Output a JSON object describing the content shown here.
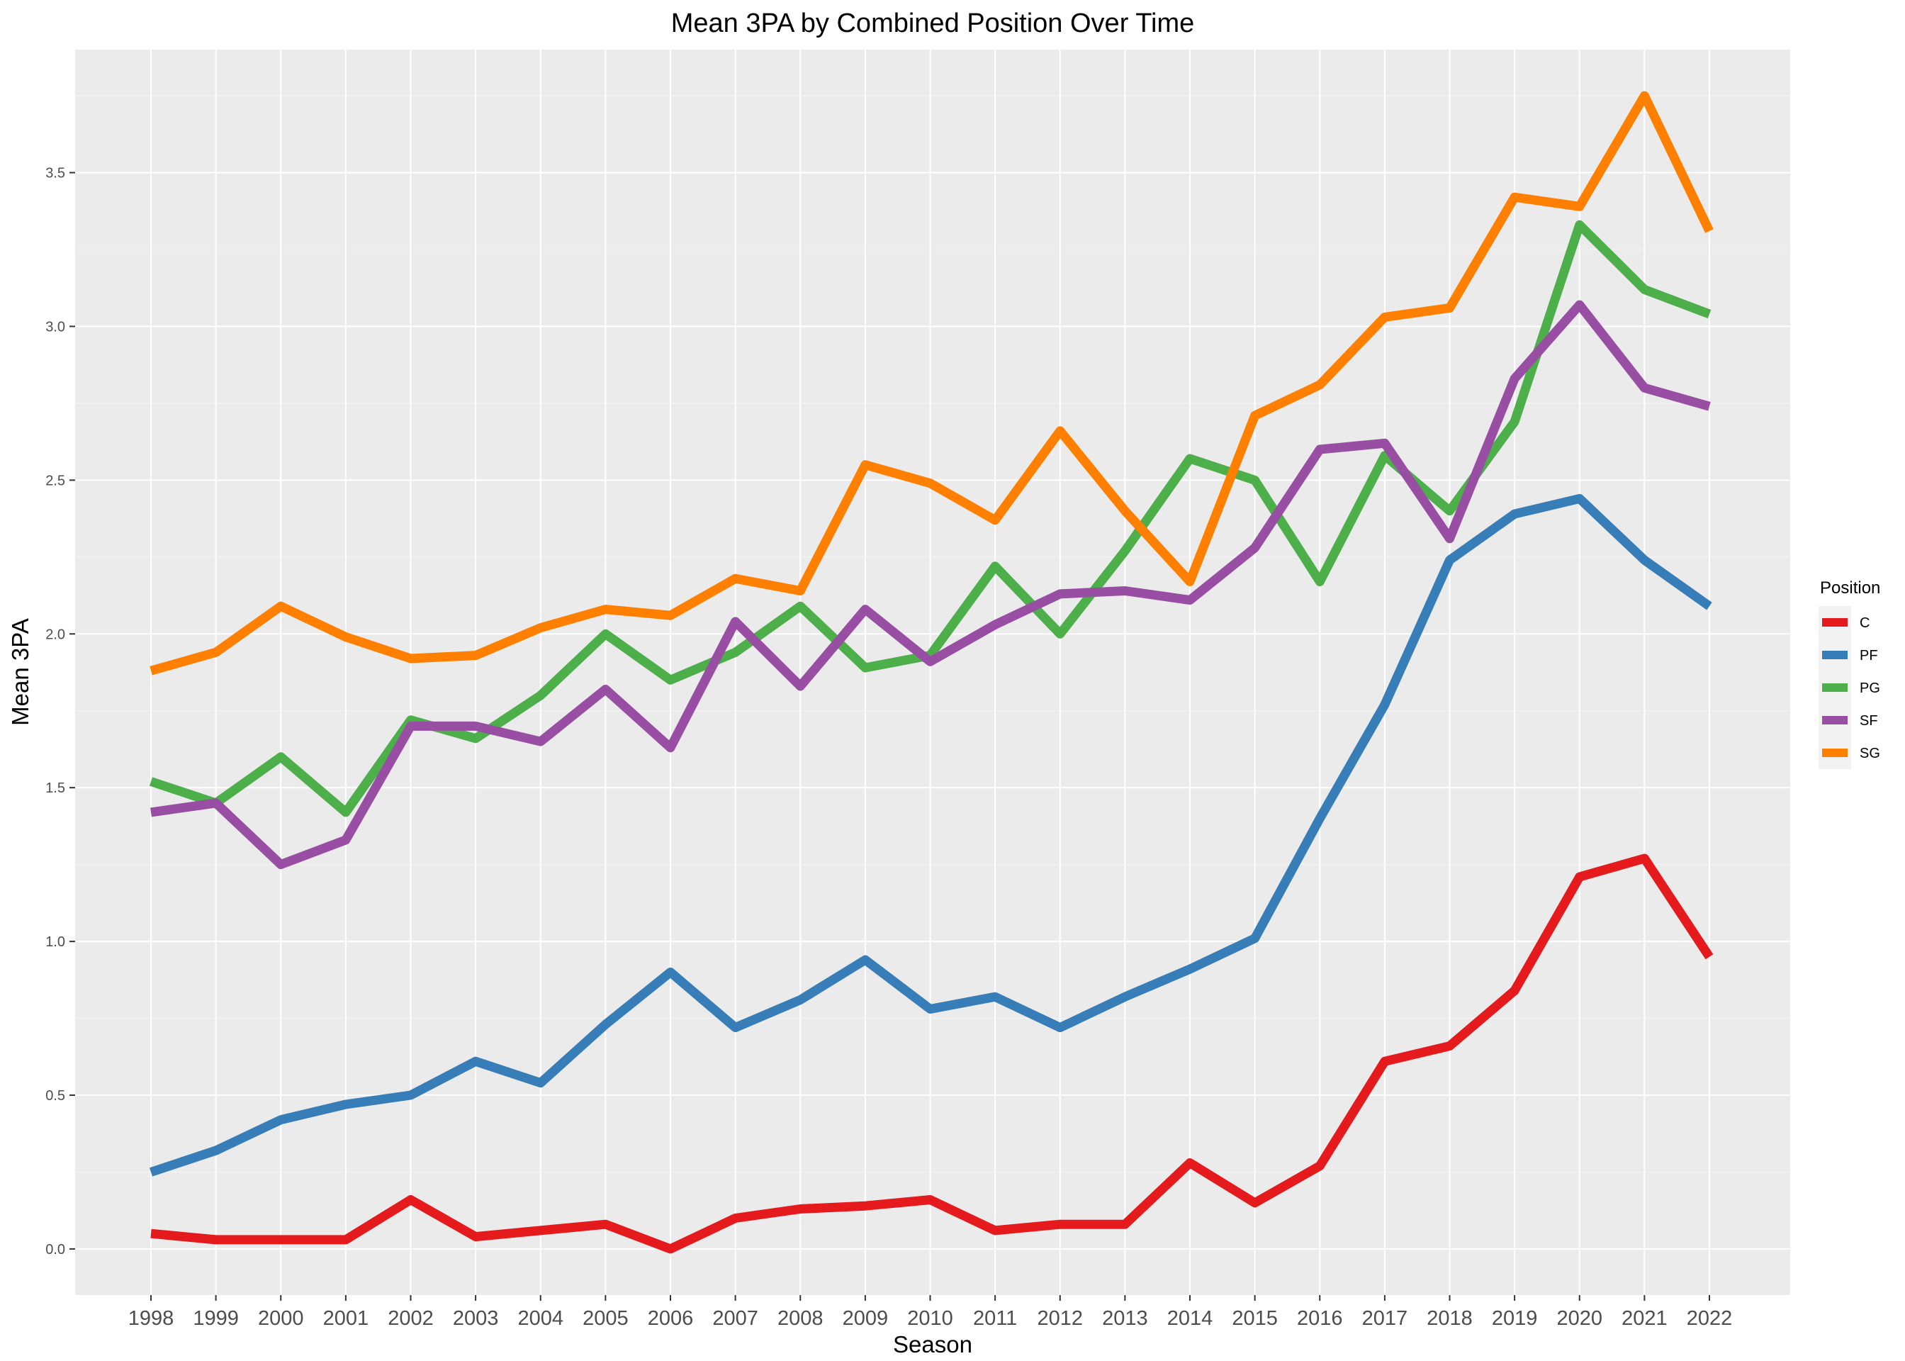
{
  "chart_data": {
    "type": "line",
    "title": "Mean 3PA by Combined Position Over Time",
    "xlabel": "Season",
    "ylabel": "Mean 3PA",
    "categories": [
      "1998",
      "1999",
      "2000",
      "2001",
      "2002",
      "2003",
      "2004",
      "2005",
      "2006",
      "2007",
      "2008",
      "2009",
      "2010",
      "2011",
      "2012",
      "2013",
      "2014",
      "2015",
      "2016",
      "2017",
      "2018",
      "2019",
      "2020",
      "2021",
      "2022"
    ],
    "y_ticks": [
      "0.0",
      "0.5",
      "1.0",
      "1.5",
      "2.0",
      "2.5",
      "3.0",
      "3.5"
    ],
    "ylim": [
      -0.15,
      3.9
    ],
    "grid": true,
    "legend": {
      "title": "Position",
      "placement": "right"
    },
    "series": [
      {
        "name": "C",
        "color": "#E41A1C",
        "values": [
          0.05,
          0.03,
          0.03,
          0.03,
          0.16,
          0.04,
          0.06,
          0.08,
          0.0,
          0.1,
          0.13,
          0.14,
          0.16,
          0.06,
          0.08,
          0.08,
          0.28,
          0.15,
          0.27,
          0.61,
          0.66,
          0.84,
          1.21,
          1.27,
          0.95
        ]
      },
      {
        "name": "PF",
        "color": "#377EB8",
        "values": [
          0.25,
          0.32,
          0.42,
          0.47,
          0.5,
          0.61,
          0.54,
          0.73,
          0.9,
          0.72,
          0.81,
          0.94,
          0.78,
          0.82,
          0.72,
          0.82,
          0.91,
          1.01,
          1.4,
          1.77,
          2.24,
          2.39,
          2.44,
          2.24,
          2.09
        ]
      },
      {
        "name": "PG",
        "color": "#4DAF4A",
        "values": [
          1.52,
          1.45,
          1.6,
          1.42,
          1.72,
          1.66,
          1.8,
          2.0,
          1.85,
          1.94,
          2.09,
          1.89,
          1.93,
          2.22,
          2.0,
          2.27,
          2.57,
          2.5,
          2.17,
          2.58,
          2.4,
          2.69,
          3.33,
          3.12,
          3.04
        ]
      },
      {
        "name": "SF",
        "color": "#984EA3",
        "values": [
          1.42,
          1.45,
          1.25,
          1.33,
          1.7,
          1.7,
          1.65,
          1.82,
          1.63,
          2.04,
          1.83,
          2.08,
          1.91,
          2.03,
          2.13,
          2.14,
          2.11,
          2.28,
          2.6,
          2.62,
          2.31,
          2.83,
          3.07,
          2.8,
          2.74
        ]
      },
      {
        "name": "SG",
        "color": "#FF7F00",
        "values": [
          1.88,
          1.94,
          2.09,
          1.99,
          1.92,
          1.93,
          2.02,
          2.08,
          2.06,
          2.18,
          2.14,
          2.55,
          2.49,
          2.37,
          2.66,
          2.4,
          2.17,
          2.71,
          2.81,
          3.03,
          3.06,
          3.42,
          3.39,
          3.75,
          3.31
        ]
      }
    ]
  }
}
